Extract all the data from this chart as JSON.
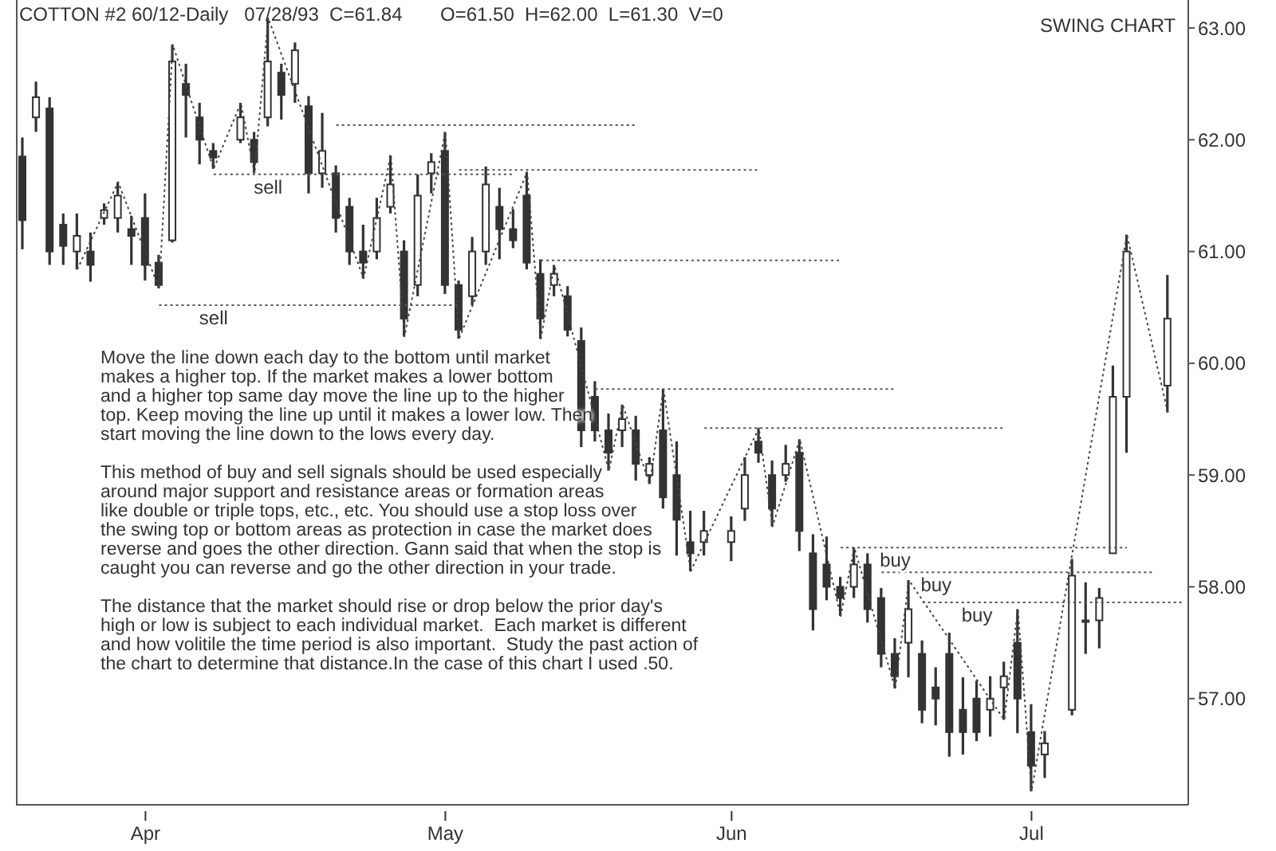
{
  "chart_data": {
    "type": "candlestick",
    "title": "COTTON #2 60/12-Daily   07/28/93  C=61.84",
    "subtitle": "O=61.50  H=62.00  L=61.30  V=0",
    "color": "#333333",
    "annotations": [
      "SWING CHART",
      "Move the line down each day to the bottom until market\nmakes a higher top. If the market makes a lower bottom\nand a higher top same day move the line up to the higher\ntop. Keep moving the line up until it makes a lower low. Then\nstart moving the line down to the lows every day.",
      "This method of buy and sell signals should be used especially\naround major support and resistance areas or formation areas\nlike double or triple tops, etc., etc. You should use a stop loss over\nthe swing top or bottom areas as protection in case the market does\nreverse and goes the other direction. Gann said that when the stop is\ncaught you can reverse and go the other direction in your trade.",
      "The distance that the market should rise or drop below the prior day's\nhigh or low is subject to each individual market.  Each market is different\nand how volitile the time period is also important.  Study the past action of\nthe chart to determine that distance.In the case of this chart I used .50."
    ],
    "categories": [
      null,
      null,
      null,
      null,
      null,
      null,
      null,
      null,
      null,
      "Apr",
      null,
      null,
      null,
      null,
      null,
      null,
      null,
      null,
      null,
      null,
      null,
      null,
      null,
      null,
      null,
      null,
      null,
      null,
      null,
      null,
      null,
      "May",
      null,
      null,
      null,
      null,
      null,
      null,
      null,
      null,
      null,
      null,
      null,
      null,
      null,
      null,
      null,
      null,
      null,
      null,
      null,
      null,
      "Jun",
      null,
      null,
      null,
      null,
      null,
      null,
      null,
      null,
      null,
      null,
      null,
      null,
      null,
      null,
      null,
      null,
      null,
      null,
      null,
      null,
      null,
      "Jul",
      null,
      null,
      null,
      null,
      null,
      null,
      null,
      null,
      null,
      null,
      null
    ],
    "ohlc": [
      [
        61.85,
        62.02,
        61.02,
        61.28
      ],
      [
        62.2,
        62.52,
        62.07,
        62.38
      ],
      [
        62.28,
        62.38,
        60.88,
        61.0
      ],
      [
        61.24,
        61.34,
        60.88,
        61.05
      ],
      [
        61.0,
        61.34,
        60.84,
        61.14
      ],
      [
        61.0,
        61.17,
        60.73,
        60.88
      ],
      [
        61.3,
        61.43,
        61.24,
        61.37
      ],
      [
        61.3,
        61.62,
        61.17,
        61.5
      ],
      [
        61.2,
        61.32,
        60.88,
        61.14
      ],
      [
        61.3,
        61.52,
        60.74,
        60.88
      ],
      [
        60.9,
        60.97,
        60.67,
        60.7
      ],
      [
        61.1,
        62.85,
        61.08,
        62.7
      ],
      [
        62.5,
        62.68,
        62.02,
        62.4
      ],
      [
        62.2,
        62.33,
        61.78,
        62.0
      ],
      [
        61.9,
        61.97,
        61.74,
        61.84
      ],
      null,
      [
        62.0,
        62.33,
        61.97,
        62.2
      ],
      [
        62.0,
        62.07,
        61.7,
        61.8
      ],
      [
        62.2,
        63.09,
        62.12,
        62.7
      ],
      [
        62.6,
        62.68,
        62.18,
        62.4
      ],
      [
        62.5,
        62.87,
        62.33,
        62.8
      ],
      [
        62.3,
        62.39,
        61.52,
        61.7
      ],
      [
        61.7,
        62.24,
        61.57,
        61.9
      ],
      [
        61.7,
        61.77,
        61.17,
        61.3
      ],
      [
        61.4,
        61.48,
        60.88,
        61.0
      ],
      [
        61.0,
        61.24,
        60.76,
        60.9
      ],
      [
        61.0,
        61.48,
        60.93,
        61.3
      ],
      [
        61.4,
        61.86,
        61.34,
        61.6
      ],
      [
        61.0,
        61.1,
        60.24,
        60.4
      ],
      [
        60.7,
        61.69,
        60.6,
        61.5
      ],
      [
        61.7,
        61.88,
        61.52,
        61.8
      ],
      [
        61.9,
        62.07,
        60.62,
        60.7
      ],
      [
        60.7,
        60.74,
        60.22,
        60.3
      ],
      [
        60.6,
        61.13,
        60.52,
        61.0
      ],
      [
        61.0,
        61.76,
        60.88,
        61.6
      ],
      [
        61.4,
        61.57,
        60.93,
        61.2
      ],
      [
        61.2,
        61.38,
        61.03,
        61.1
      ],
      [
        61.5,
        61.71,
        60.84,
        60.9
      ],
      [
        60.8,
        60.93,
        60.22,
        60.4
      ],
      [
        60.7,
        60.88,
        60.6,
        60.8
      ],
      [
        60.6,
        60.69,
        60.24,
        60.3
      ],
      [
        60.2,
        60.32,
        59.25,
        59.4
      ],
      [
        59.7,
        59.84,
        59.3,
        59.4
      ],
      [
        59.4,
        59.55,
        59.04,
        59.2
      ],
      [
        59.4,
        59.63,
        59.25,
        59.5
      ],
      [
        59.4,
        59.53,
        58.95,
        59.1
      ],
      [
        59.0,
        59.16,
        58.92,
        59.1
      ],
      [
        59.4,
        59.77,
        58.7,
        58.8
      ],
      [
        59.0,
        59.3,
        58.28,
        58.6
      ],
      [
        58.4,
        58.68,
        58.14,
        58.3
      ],
      [
        58.4,
        58.68,
        58.28,
        58.5
      ],
      null,
      [
        58.4,
        58.63,
        58.23,
        58.5
      ],
      [
        58.7,
        59.16,
        58.59,
        59.0
      ],
      [
        59.3,
        59.42,
        59.11,
        59.2
      ],
      [
        59.0,
        59.13,
        58.54,
        58.7
      ],
      [
        59.0,
        59.27,
        58.94,
        59.1
      ],
      [
        59.2,
        59.32,
        58.32,
        58.5
      ],
      [
        58.3,
        58.47,
        57.61,
        57.8
      ],
      [
        58.2,
        58.45,
        57.88,
        58.0
      ],
      [
        58.0,
        58.09,
        57.74,
        57.9
      ],
      [
        58.0,
        58.35,
        57.9,
        58.2
      ],
      [
        58.2,
        58.3,
        57.68,
        57.8
      ],
      [
        57.9,
        57.99,
        57.28,
        57.4
      ],
      [
        57.4,
        57.54,
        57.09,
        57.2
      ],
      [
        57.5,
        58.06,
        57.19,
        57.8
      ],
      [
        57.4,
        57.52,
        56.78,
        56.9
      ],
      [
        57.1,
        57.28,
        56.76,
        57.0
      ],
      [
        57.4,
        57.59,
        56.48,
        56.7
      ],
      [
        56.9,
        57.19,
        56.5,
        56.7
      ],
      [
        57.0,
        57.16,
        56.62,
        56.7
      ],
      [
        56.9,
        57.2,
        56.66,
        57.0
      ],
      [
        57.1,
        57.33,
        56.81,
        57.2
      ],
      [
        57.5,
        57.8,
        56.69,
        57.0
      ],
      [
        56.7,
        56.95,
        56.17,
        56.4
      ],
      [
        56.5,
        56.71,
        56.29,
        56.6
      ],
      null,
      [
        56.9,
        58.25,
        56.85,
        58.1
      ],
      [
        57.7,
        58.04,
        57.4,
        57.7
      ],
      [
        57.7,
        57.99,
        57.45,
        57.9
      ],
      [
        58.3,
        59.98,
        58.3,
        59.7
      ],
      [
        59.7,
        61.15,
        59.2,
        61.0
      ],
      null,
      null,
      [
        59.8,
        60.79,
        59.56,
        60.4
      ],
      null
    ],
    "series": [
      {
        "type": "line",
        "color": "#444444",
        "line_style": "dotted",
        "values": [
          null,
          null,
          null,
          null,
          60.84,
          null,
          null,
          61.62,
          null,
          null,
          60.67,
          62.85,
          null,
          null,
          61.74,
          null,
          62.33,
          61.7,
          63.09,
          null,
          null,
          null,
          null,
          null,
          null,
          60.76,
          null,
          61.86,
          60.24,
          null,
          null,
          62.07,
          60.22,
          null,
          null,
          null,
          null,
          61.71,
          60.22,
          60.88,
          null,
          null,
          null,
          59.04,
          59.63,
          null,
          58.92,
          59.77,
          null,
          58.14,
          null,
          null,
          null,
          null,
          59.42,
          58.54,
          null,
          59.32,
          null,
          null,
          57.74,
          58.35,
          null,
          null,
          57.09,
          58.06,
          null,
          null,
          null,
          null,
          null,
          null,
          56.81,
          57.8,
          56.17,
          null,
          null,
          null,
          null,
          null,
          null,
          61.15,
          null,
          null,
          59.56,
          null
        ]
      },
      {
        "type": "line",
        "color": "#555555",
        "line_style": "dotted",
        "values": [
          null,
          null,
          null,
          null,
          null,
          null,
          null,
          null,
          null,
          null,
          null,
          null,
          null,
          null,
          null,
          null,
          null,
          null,
          null,
          null,
          null,
          null,
          null,
          62.13,
          62.13,
          62.13,
          62.13,
          62.13,
          62.13,
          62.13,
          62.13,
          62.13,
          62.13,
          62.13,
          62.13,
          62.13,
          62.13,
          62.13,
          62.13,
          62.13,
          62.13,
          62.13,
          62.13,
          62.13,
          62.13,
          62.13,
          null,
          null,
          null,
          null,
          null,
          null,
          null,
          null,
          null,
          null,
          null,
          null,
          null,
          null,
          null,
          null,
          null,
          null,
          null,
          null,
          null,
          null,
          null,
          null,
          null,
          null,
          null,
          null,
          null,
          null,
          null,
          null,
          null,
          null,
          null,
          null,
          null,
          null,
          null,
          null
        ]
      },
      {
        "type": "line",
        "name": "sell",
        "color": "#555555",
        "line_style": "dotted",
        "values": [
          null,
          null,
          null,
          null,
          null,
          null,
          null,
          null,
          null,
          null,
          null,
          null,
          null,
          null,
          61.69,
          61.69,
          61.69,
          61.69,
          61.69,
          61.69,
          61.69,
          61.69,
          61.69,
          61.69,
          61.69,
          61.69,
          61.69,
          61.69,
          61.69,
          61.69,
          61.69,
          61.69,
          61.69,
          61.69,
          61.69,
          61.69,
          61.69,
          null,
          null,
          null,
          null,
          null,
          null,
          null,
          null,
          null,
          null,
          null,
          null,
          null,
          null,
          null,
          null,
          null,
          null,
          null,
          null,
          null,
          null,
          null,
          null,
          null,
          null,
          null,
          null,
          null,
          null,
          null,
          null,
          null,
          null,
          null,
          null,
          null,
          null,
          null,
          null,
          null,
          null,
          null,
          null,
          null,
          null,
          null,
          null,
          null
        ]
      },
      {
        "type": "line",
        "color": "#555555",
        "line_style": "dotted",
        "values": [
          null,
          null,
          null,
          null,
          null,
          null,
          null,
          null,
          null,
          null,
          null,
          null,
          null,
          null,
          null,
          null,
          null,
          null,
          null,
          null,
          null,
          null,
          null,
          null,
          null,
          null,
          null,
          null,
          null,
          null,
          null,
          null,
          61.73,
          61.73,
          61.73,
          61.73,
          61.73,
          61.73,
          61.73,
          61.73,
          61.73,
          61.73,
          61.73,
          61.73,
          61.73,
          61.73,
          61.73,
          61.73,
          61.73,
          61.73,
          61.73,
          61.73,
          61.73,
          61.73,
          61.73,
          null,
          null,
          null,
          null,
          null,
          null,
          null,
          null,
          null,
          null,
          null,
          null,
          null,
          null,
          null,
          null,
          null,
          null,
          null,
          null,
          null,
          null,
          null,
          null,
          null,
          null,
          null,
          null,
          null,
          null,
          null
        ]
      },
      {
        "type": "line",
        "name": "sell",
        "color": "#555555",
        "line_style": "dotted",
        "values": [
          null,
          null,
          null,
          null,
          null,
          null,
          null,
          null,
          null,
          null,
          60.52,
          60.52,
          60.52,
          60.52,
          60.52,
          60.52,
          60.52,
          60.52,
          60.52,
          60.52,
          60.52,
          60.52,
          60.52,
          60.52,
          60.52,
          60.52,
          60.52,
          60.52,
          60.52,
          60.52,
          60.52,
          60.52,
          60.52,
          null,
          null,
          null,
          null,
          null,
          null,
          null,
          null,
          null,
          null,
          null,
          null,
          null,
          null,
          null,
          null,
          null,
          null,
          null,
          null,
          null,
          null,
          null,
          null,
          null,
          null,
          null,
          null,
          null,
          null,
          null,
          null,
          null,
          null,
          null,
          null,
          null,
          null,
          null,
          null,
          null,
          null,
          null,
          null,
          null,
          null,
          null,
          null,
          null,
          null,
          null,
          null,
          null
        ]
      },
      {
        "type": "line",
        "color": "#555555",
        "line_style": "dotted",
        "values": [
          null,
          null,
          null,
          null,
          null,
          null,
          null,
          null,
          null,
          null,
          null,
          null,
          null,
          null,
          null,
          null,
          null,
          null,
          null,
          null,
          null,
          null,
          null,
          null,
          null,
          null,
          null,
          null,
          null,
          null,
          null,
          null,
          null,
          null,
          null,
          null,
          null,
          null,
          60.92,
          60.92,
          60.92,
          60.92,
          60.92,
          60.92,
          60.92,
          60.92,
          60.92,
          60.92,
          60.92,
          60.92,
          60.92,
          60.92,
          60.92,
          60.92,
          60.92,
          60.92,
          60.92,
          60.92,
          60.92,
          60.92,
          60.92,
          null,
          null,
          null,
          null,
          null,
          null,
          null,
          null,
          null,
          null,
          null,
          null,
          null,
          null,
          null,
          null,
          null,
          null,
          null,
          null,
          null,
          null,
          null,
          null,
          null
        ]
      },
      {
        "type": "line",
        "color": "#555555",
        "line_style": "dotted",
        "values": [
          null,
          null,
          null,
          null,
          null,
          null,
          null,
          null,
          null,
          null,
          null,
          null,
          null,
          null,
          null,
          null,
          null,
          null,
          null,
          null,
          null,
          null,
          null,
          null,
          null,
          null,
          null,
          null,
          null,
          null,
          null,
          null,
          null,
          null,
          null,
          null,
          null,
          null,
          null,
          null,
          null,
          null,
          59.77,
          59.77,
          59.77,
          59.77,
          59.77,
          59.77,
          59.77,
          59.77,
          59.77,
          59.77,
          59.77,
          59.77,
          59.77,
          59.77,
          59.77,
          59.77,
          59.77,
          59.77,
          59.77,
          59.77,
          59.77,
          59.77,
          59.77,
          null,
          null,
          null,
          null,
          null,
          null,
          null,
          null,
          null,
          null,
          null,
          null,
          null,
          null,
          null,
          null,
          null,
          null,
          null,
          null,
          null
        ]
      },
      {
        "type": "line",
        "color": "#555555",
        "line_style": "dotted",
        "values": [
          null,
          null,
          null,
          null,
          null,
          null,
          null,
          null,
          null,
          null,
          null,
          null,
          null,
          null,
          null,
          null,
          null,
          null,
          null,
          null,
          null,
          null,
          null,
          null,
          null,
          null,
          null,
          null,
          null,
          null,
          null,
          null,
          null,
          null,
          null,
          null,
          null,
          null,
          null,
          null,
          null,
          null,
          null,
          null,
          null,
          null,
          null,
          null,
          null,
          null,
          59.42,
          59.42,
          59.42,
          59.42,
          59.42,
          59.42,
          59.42,
          59.42,
          59.42,
          59.42,
          59.42,
          59.42,
          59.42,
          59.42,
          59.42,
          59.42,
          59.42,
          59.42,
          59.42,
          59.42,
          59.42,
          59.42,
          59.42,
          null,
          null,
          null,
          null,
          null,
          null,
          null,
          null,
          null,
          null,
          null,
          null,
          null
        ]
      },
      {
        "type": "line",
        "name": "buy",
        "color": "#555555",
        "line_style": "dotted",
        "values": [
          null,
          null,
          null,
          null,
          null,
          null,
          null,
          null,
          null,
          null,
          null,
          null,
          null,
          null,
          null,
          null,
          null,
          null,
          null,
          null,
          null,
          null,
          null,
          null,
          null,
          null,
          null,
          null,
          null,
          null,
          null,
          null,
          null,
          null,
          null,
          null,
          null,
          null,
          null,
          null,
          null,
          null,
          null,
          null,
          null,
          null,
          null,
          null,
          null,
          null,
          null,
          null,
          null,
          null,
          null,
          null,
          null,
          null,
          null,
          null,
          58.35,
          58.35,
          58.35,
          58.35,
          58.35,
          58.35,
          58.35,
          58.35,
          58.35,
          58.35,
          58.35,
          58.35,
          58.35,
          58.35,
          58.35,
          58.35,
          58.35,
          58.35,
          58.35,
          58.35,
          58.35,
          58.35,
          null,
          null,
          null,
          null
        ]
      },
      {
        "type": "line",
        "name": "buy",
        "color": "#555555",
        "line_style": "dotted",
        "values": [
          null,
          null,
          null,
          null,
          null,
          null,
          null,
          null,
          null,
          null,
          null,
          null,
          null,
          null,
          null,
          null,
          null,
          null,
          null,
          null,
          null,
          null,
          null,
          null,
          null,
          null,
          null,
          null,
          null,
          null,
          null,
          null,
          null,
          null,
          null,
          null,
          null,
          null,
          null,
          null,
          null,
          null,
          null,
          null,
          null,
          null,
          null,
          null,
          null,
          null,
          null,
          null,
          null,
          null,
          null,
          null,
          null,
          null,
          null,
          null,
          null,
          null,
          null,
          58.13,
          58.13,
          58.13,
          58.13,
          58.13,
          58.13,
          58.13,
          58.13,
          58.13,
          58.13,
          58.13,
          58.13,
          58.13,
          58.13,
          58.13,
          58.13,
          58.13,
          58.13,
          58.13,
          58.13,
          58.13,
          null,
          null
        ]
      },
      {
        "type": "line",
        "name": "buy",
        "color": "#555555",
        "line_style": "dotted",
        "values": [
          null,
          null,
          null,
          null,
          null,
          null,
          null,
          null,
          null,
          null,
          null,
          null,
          null,
          null,
          null,
          null,
          null,
          null,
          null,
          null,
          null,
          null,
          null,
          null,
          null,
          null,
          null,
          null,
          null,
          null,
          null,
          null,
          null,
          null,
          null,
          null,
          null,
          null,
          null,
          null,
          null,
          null,
          null,
          null,
          null,
          null,
          null,
          null,
          null,
          null,
          null,
          null,
          null,
          null,
          null,
          null,
          null,
          null,
          null,
          null,
          null,
          null,
          null,
          null,
          null,
          null,
          57.86,
          57.86,
          57.86,
          57.86,
          57.86,
          57.86,
          57.86,
          57.86,
          57.86,
          57.86,
          57.86,
          57.86,
          57.86,
          57.86,
          57.86,
          57.86,
          57.86,
          57.86,
          57.86,
          57.86
        ]
      }
    ],
    "ylim": [
      56.05,
      63.25
    ],
    "yticks": [
      {
        "value": 57,
        "label": "57.00"
      },
      {
        "value": 58,
        "label": "58.00"
      },
      {
        "value": 59,
        "label": "59.00"
      },
      {
        "value": 60,
        "label": "60.00"
      },
      {
        "value": 61,
        "label": "61.00"
      },
      {
        "value": 62,
        "label": "62.00"
      },
      {
        "value": 63,
        "label": "63.00"
      }
    ]
  }
}
